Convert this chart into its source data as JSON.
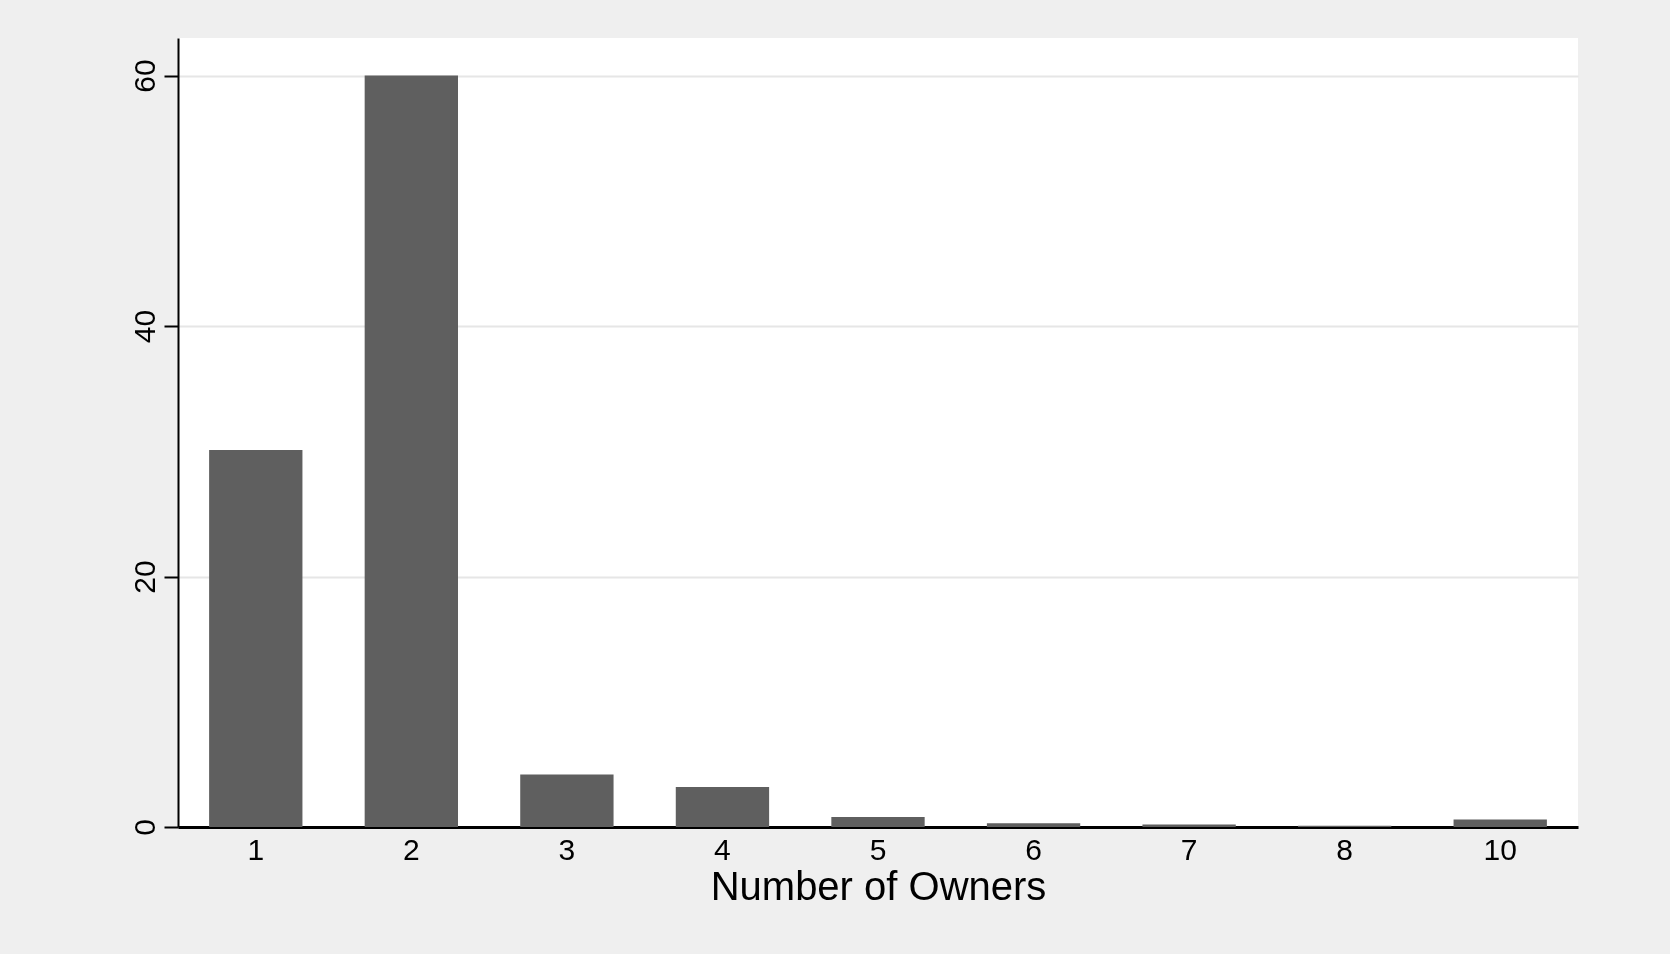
{
  "chart_data": {
    "type": "bar",
    "xlabel": "Number of Owners",
    "categories": [
      "1",
      "2",
      "3",
      "4",
      "5",
      "6",
      "7",
      "8",
      "10"
    ],
    "values": [
      30.1,
      60,
      4.2,
      3.2,
      0.8,
      0.3,
      0.2,
      0.1,
      0.6
    ],
    "color": "#5f5f5f",
    "ylim": [
      0,
      63
    ],
    "yticks": [
      0,
      20,
      40,
      60
    ],
    "grid": "y",
    "legend": false
  }
}
